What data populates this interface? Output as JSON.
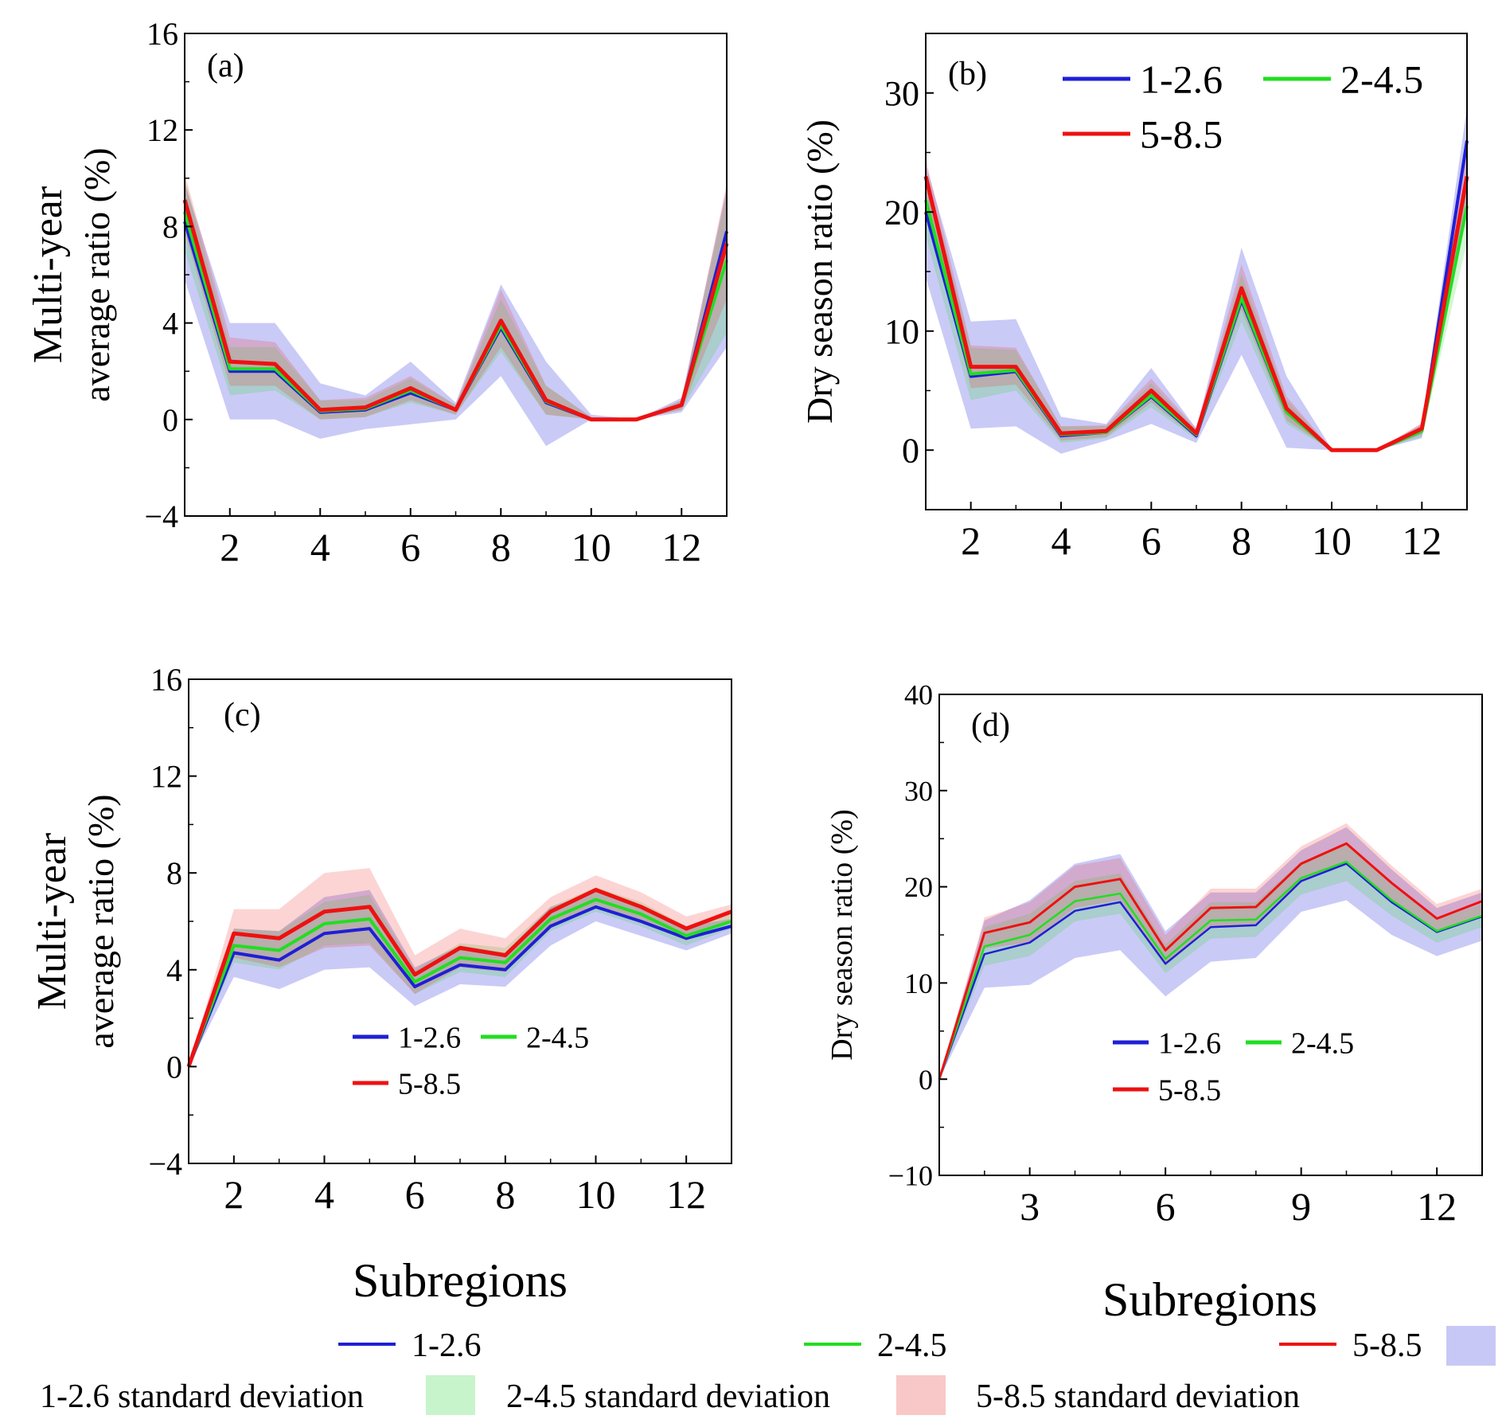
{
  "chart_data": [
    {
      "id": "a",
      "type": "line",
      "panel_label": "(a)",
      "ylabel": [
        "Multi-year",
        "average ratio (%)"
      ],
      "xlabel": "",
      "ylim": [
        -4,
        16
      ],
      "yticks": [
        "-4",
        "0",
        "4",
        "8",
        "12",
        "16"
      ],
      "xlim": [
        1,
        13
      ],
      "xticks": [
        "2",
        "4",
        "6",
        "8",
        "10",
        "12"
      ],
      "x": [
        1,
        2,
        3,
        4,
        5,
        6,
        7,
        8,
        9,
        10,
        11,
        12,
        13
      ],
      "series": [
        {
          "name": "1-2.6",
          "color": "#1f1fd6",
          "values": [
            8.2,
            2.0,
            2.0,
            0.3,
            0.4,
            1.1,
            0.4,
            3.8,
            0.7,
            0.0,
            0.0,
            0.6,
            7.8
          ],
          "lower": [
            5.8,
            0.0,
            0.0,
            -0.8,
            -0.4,
            -0.2,
            0.0,
            1.8,
            -1.1,
            0.0,
            0.0,
            0.3,
            3.0
          ],
          "upper": [
            9.8,
            4.0,
            4.0,
            1.5,
            1.0,
            2.4,
            0.7,
            5.6,
            2.4,
            0.2,
            0.0,
            0.9,
            9.6
          ]
        },
        {
          "name": "2-4.5",
          "color": "#22dd22",
          "values": [
            8.6,
            2.1,
            2.1,
            0.35,
            0.45,
            1.2,
            0.4,
            3.9,
            0.75,
            0.0,
            0.0,
            0.6,
            6.6
          ],
          "lower": [
            7.0,
            1.0,
            1.2,
            0.0,
            0.1,
            0.7,
            0.2,
            2.8,
            0.2,
            0.0,
            0.0,
            0.4,
            3.6
          ],
          "upper": [
            10.0,
            3.0,
            3.0,
            0.8,
            0.8,
            1.7,
            0.6,
            5.0,
            1.4,
            0.1,
            0.0,
            0.8,
            9.4
          ]
        },
        {
          "name": "5-8.5",
          "color": "#ee1111",
          "values": [
            9.1,
            2.4,
            2.3,
            0.4,
            0.5,
            1.3,
            0.4,
            4.1,
            0.8,
            0.0,
            0.0,
            0.6,
            7.3
          ],
          "lower": [
            7.8,
            1.4,
            1.4,
            0.0,
            0.1,
            0.8,
            0.2,
            3.0,
            0.2,
            0.0,
            0.0,
            0.4,
            5.0
          ],
          "upper": [
            10.2,
            3.4,
            3.2,
            0.8,
            0.9,
            1.8,
            0.6,
            5.4,
            1.4,
            0.1,
            0.0,
            0.8,
            9.8
          ]
        }
      ],
      "legend": null
    },
    {
      "id": "b",
      "type": "line",
      "panel_label": "(b)",
      "ylabel": [
        "Dry season ratio (%)"
      ],
      "xlabel": "",
      "ylim": [
        -5,
        35
      ],
      "yticks": [
        "0",
        "10",
        "20",
        "30"
      ],
      "ytick_values": [
        0,
        10,
        20,
        30
      ],
      "xlim": [
        1,
        13
      ],
      "xticks": [
        "2",
        "4",
        "6",
        "8",
        "10",
        "12"
      ],
      "x": [
        1,
        2,
        3,
        4,
        5,
        6,
        7,
        8,
        9,
        10,
        11,
        12,
        13
      ],
      "series": [
        {
          "name": "1-2.6",
          "color": "#1f1fd6",
          "values": [
            20.0,
            6.2,
            6.6,
            1.2,
            1.5,
            4.5,
            1.2,
            12.6,
            3.2,
            0.0,
            0.0,
            1.6,
            26.0
          ],
          "lower": [
            14.5,
            1.8,
            2.0,
            -0.3,
            0.8,
            2.2,
            0.6,
            8.0,
            0.2,
            0.0,
            0.0,
            1.0,
            21.0
          ],
          "upper": [
            24.0,
            10.8,
            11.0,
            2.8,
            2.2,
            6.9,
            1.8,
            17.0,
            6.2,
            0.1,
            0.0,
            2.2,
            28.8
          ]
        },
        {
          "name": "2-4.5",
          "color": "#22dd22",
          "values": [
            21.0,
            6.4,
            6.7,
            1.3,
            1.5,
            4.6,
            1.3,
            12.8,
            3.2,
            0.0,
            0.0,
            1.6,
            20.5
          ],
          "lower": [
            18.0,
            4.2,
            5.0,
            0.6,
            1.0,
            3.6,
            0.9,
            10.8,
            2.2,
            0.0,
            0.0,
            1.1,
            17.5
          ],
          "upper": [
            23.5,
            8.6,
            8.4,
            2.0,
            2.0,
            5.6,
            1.7,
            14.8,
            4.2,
            0.1,
            0.0,
            2.1,
            23.5
          ]
        },
        {
          "name": "5-8.5",
          "color": "#ee1111",
          "values": [
            23.0,
            7.0,
            7.0,
            1.4,
            1.6,
            5.0,
            1.4,
            13.6,
            3.5,
            0.0,
            0.0,
            1.8,
            23.0
          ],
          "lower": [
            21.0,
            5.2,
            5.5,
            0.8,
            1.1,
            4.0,
            1.0,
            11.8,
            2.5,
            0.0,
            0.0,
            1.3,
            20.0
          ],
          "upper": [
            24.5,
            8.8,
            8.6,
            2.0,
            2.1,
            6.0,
            1.8,
            15.6,
            4.5,
            0.1,
            0.0,
            2.3,
            25.5
          ]
        }
      ],
      "legend": {
        "placement": "top-right",
        "entries": [
          "1-2.6",
          "2-4.5",
          "5-8.5"
        ]
      }
    },
    {
      "id": "c",
      "type": "line",
      "panel_label": "(c)",
      "ylabel": [
        "Multi-year",
        "average ratio (%)"
      ],
      "xlabel": "Subregions",
      "ylim": [
        -4,
        16
      ],
      "yticks": [
        "-4",
        "0",
        "4",
        "8",
        "12",
        "16"
      ],
      "xlim": [
        1,
        13
      ],
      "xticks": [
        "2",
        "4",
        "6",
        "8",
        "10",
        "12"
      ],
      "x": [
        1,
        2,
        3,
        4,
        5,
        6,
        7,
        8,
        9,
        10,
        11,
        12,
        13
      ],
      "series": [
        {
          "name": "1-2.6",
          "color": "#1f1fd6",
          "values": [
            0.0,
            4.7,
            4.4,
            5.5,
            5.7,
            3.3,
            4.2,
            4.0,
            5.8,
            6.6,
            6.0,
            5.3,
            5.8
          ],
          "lower": [
            0.0,
            3.7,
            3.2,
            4.0,
            4.1,
            2.5,
            3.4,
            3.3,
            5.0,
            6.0,
            5.4,
            4.8,
            5.5
          ],
          "upper": [
            0.0,
            5.7,
            5.6,
            7.0,
            7.3,
            4.1,
            5.0,
            4.7,
            6.6,
            7.2,
            6.6,
            5.8,
            6.1
          ]
        },
        {
          "name": "2-4.5",
          "color": "#22dd22",
          "values": [
            0.0,
            5.0,
            4.8,
            5.9,
            6.1,
            3.5,
            4.5,
            4.3,
            6.1,
            6.9,
            6.3,
            5.4,
            6.0
          ],
          "lower": [
            0.0,
            4.3,
            4.0,
            5.0,
            5.1,
            3.0,
            3.9,
            3.7,
            5.6,
            6.4,
            5.8,
            5.0,
            5.7
          ],
          "upper": [
            0.0,
            5.7,
            5.6,
            6.8,
            7.1,
            4.0,
            5.1,
            4.9,
            6.6,
            7.4,
            6.8,
            5.8,
            6.3
          ]
        },
        {
          "name": "5-8.5",
          "color": "#ee1111",
          "values": [
            0.0,
            5.5,
            5.3,
            6.4,
            6.6,
            3.8,
            4.9,
            4.6,
            6.4,
            7.3,
            6.6,
            5.7,
            6.4
          ],
          "lower": [
            0.0,
            4.5,
            4.1,
            4.9,
            5.0,
            3.0,
            4.1,
            3.9,
            5.8,
            6.7,
            6.0,
            5.2,
            6.1
          ],
          "upper": [
            0.0,
            6.5,
            6.5,
            8.0,
            8.2,
            4.6,
            5.7,
            5.3,
            7.0,
            7.9,
            7.2,
            6.2,
            6.7
          ]
        }
      ],
      "legend": {
        "placement": "center",
        "entries": [
          "1-2.6",
          "2-4.5",
          "5-8.5"
        ]
      }
    },
    {
      "id": "d",
      "type": "line",
      "panel_label": "(d)",
      "ylabel": [
        "Dry season ratio (%)"
      ],
      "xlabel": "Subregions",
      "ylim": [
        -10,
        40
      ],
      "yticks": [
        "-10",
        "0",
        "10",
        "20",
        "30",
        "40"
      ],
      "xlim": [
        1,
        13
      ],
      "xticks": [
        "3",
        "6",
        "9",
        "12"
      ],
      "xtick_values": [
        3,
        6,
        9,
        12
      ],
      "x": [
        1,
        2,
        3,
        4,
        5,
        6,
        7,
        8,
        9,
        10,
        11,
        12,
        13
      ],
      "series": [
        {
          "name": "1-2.6",
          "color": "#1f1fd6",
          "values": [
            0.0,
            13.0,
            14.2,
            17.5,
            18.4,
            12.0,
            15.8,
            16.0,
            20.6,
            22.4,
            18.4,
            15.3,
            16.9
          ],
          "lower": [
            0.0,
            9.5,
            9.8,
            12.6,
            13.4,
            8.6,
            12.2,
            12.6,
            17.4,
            18.6,
            15.0,
            12.8,
            14.4
          ],
          "upper": [
            0.0,
            16.5,
            18.6,
            22.4,
            23.4,
            15.4,
            19.4,
            19.4,
            23.8,
            26.2,
            21.8,
            17.8,
            19.4
          ]
        },
        {
          "name": "2-4.5",
          "color": "#22dd22",
          "values": [
            0.0,
            13.8,
            15.0,
            18.5,
            19.3,
            12.5,
            16.5,
            16.6,
            20.9,
            22.6,
            18.6,
            15.4,
            17.0
          ],
          "lower": [
            0.0,
            11.8,
            12.8,
            16.4,
            17.2,
            11.0,
            14.6,
            14.8,
            19.2,
            20.6,
            17.0,
            14.2,
            15.8
          ],
          "upper": [
            0.0,
            15.8,
            17.2,
            20.6,
            21.4,
            14.0,
            18.4,
            18.4,
            22.6,
            24.6,
            20.2,
            16.6,
            18.2
          ]
        },
        {
          "name": "5-8.5",
          "color": "#ee1111",
          "values": [
            0.0,
            15.2,
            16.3,
            20.0,
            20.8,
            13.4,
            17.8,
            17.9,
            22.4,
            24.5,
            20.4,
            16.7,
            18.5
          ],
          "lower": [
            0.0,
            13.6,
            14.2,
            17.8,
            18.6,
            11.8,
            15.8,
            16.0,
            20.6,
            22.4,
            18.6,
            15.2,
            17.2
          ],
          "upper": [
            0.0,
            16.8,
            18.4,
            22.2,
            23.0,
            15.0,
            19.8,
            19.8,
            24.2,
            26.6,
            22.2,
            18.2,
            19.8
          ]
        }
      ],
      "legend": {
        "placement": "bottom-center",
        "entries": [
          "1-2.6",
          "2-4.5",
          "5-8.5"
        ]
      }
    }
  ],
  "bottom_legend": {
    "lines": [
      {
        "label": "1-2.6",
        "color": "#1f1fd6"
      },
      {
        "label": "2-4.5",
        "color": "#22dd22"
      },
      {
        "label": "5-8.5",
        "color": "#ee1111"
      }
    ],
    "bands": [
      {
        "label": "1-2.6 standard deviation",
        "color": "#c8c8f6"
      },
      {
        "label": "2-4.5 standard deviation",
        "color": "#c8f4cc"
      },
      {
        "label": "5-8.5 standard deviation",
        "color": "#f8c8c8"
      }
    ]
  }
}
